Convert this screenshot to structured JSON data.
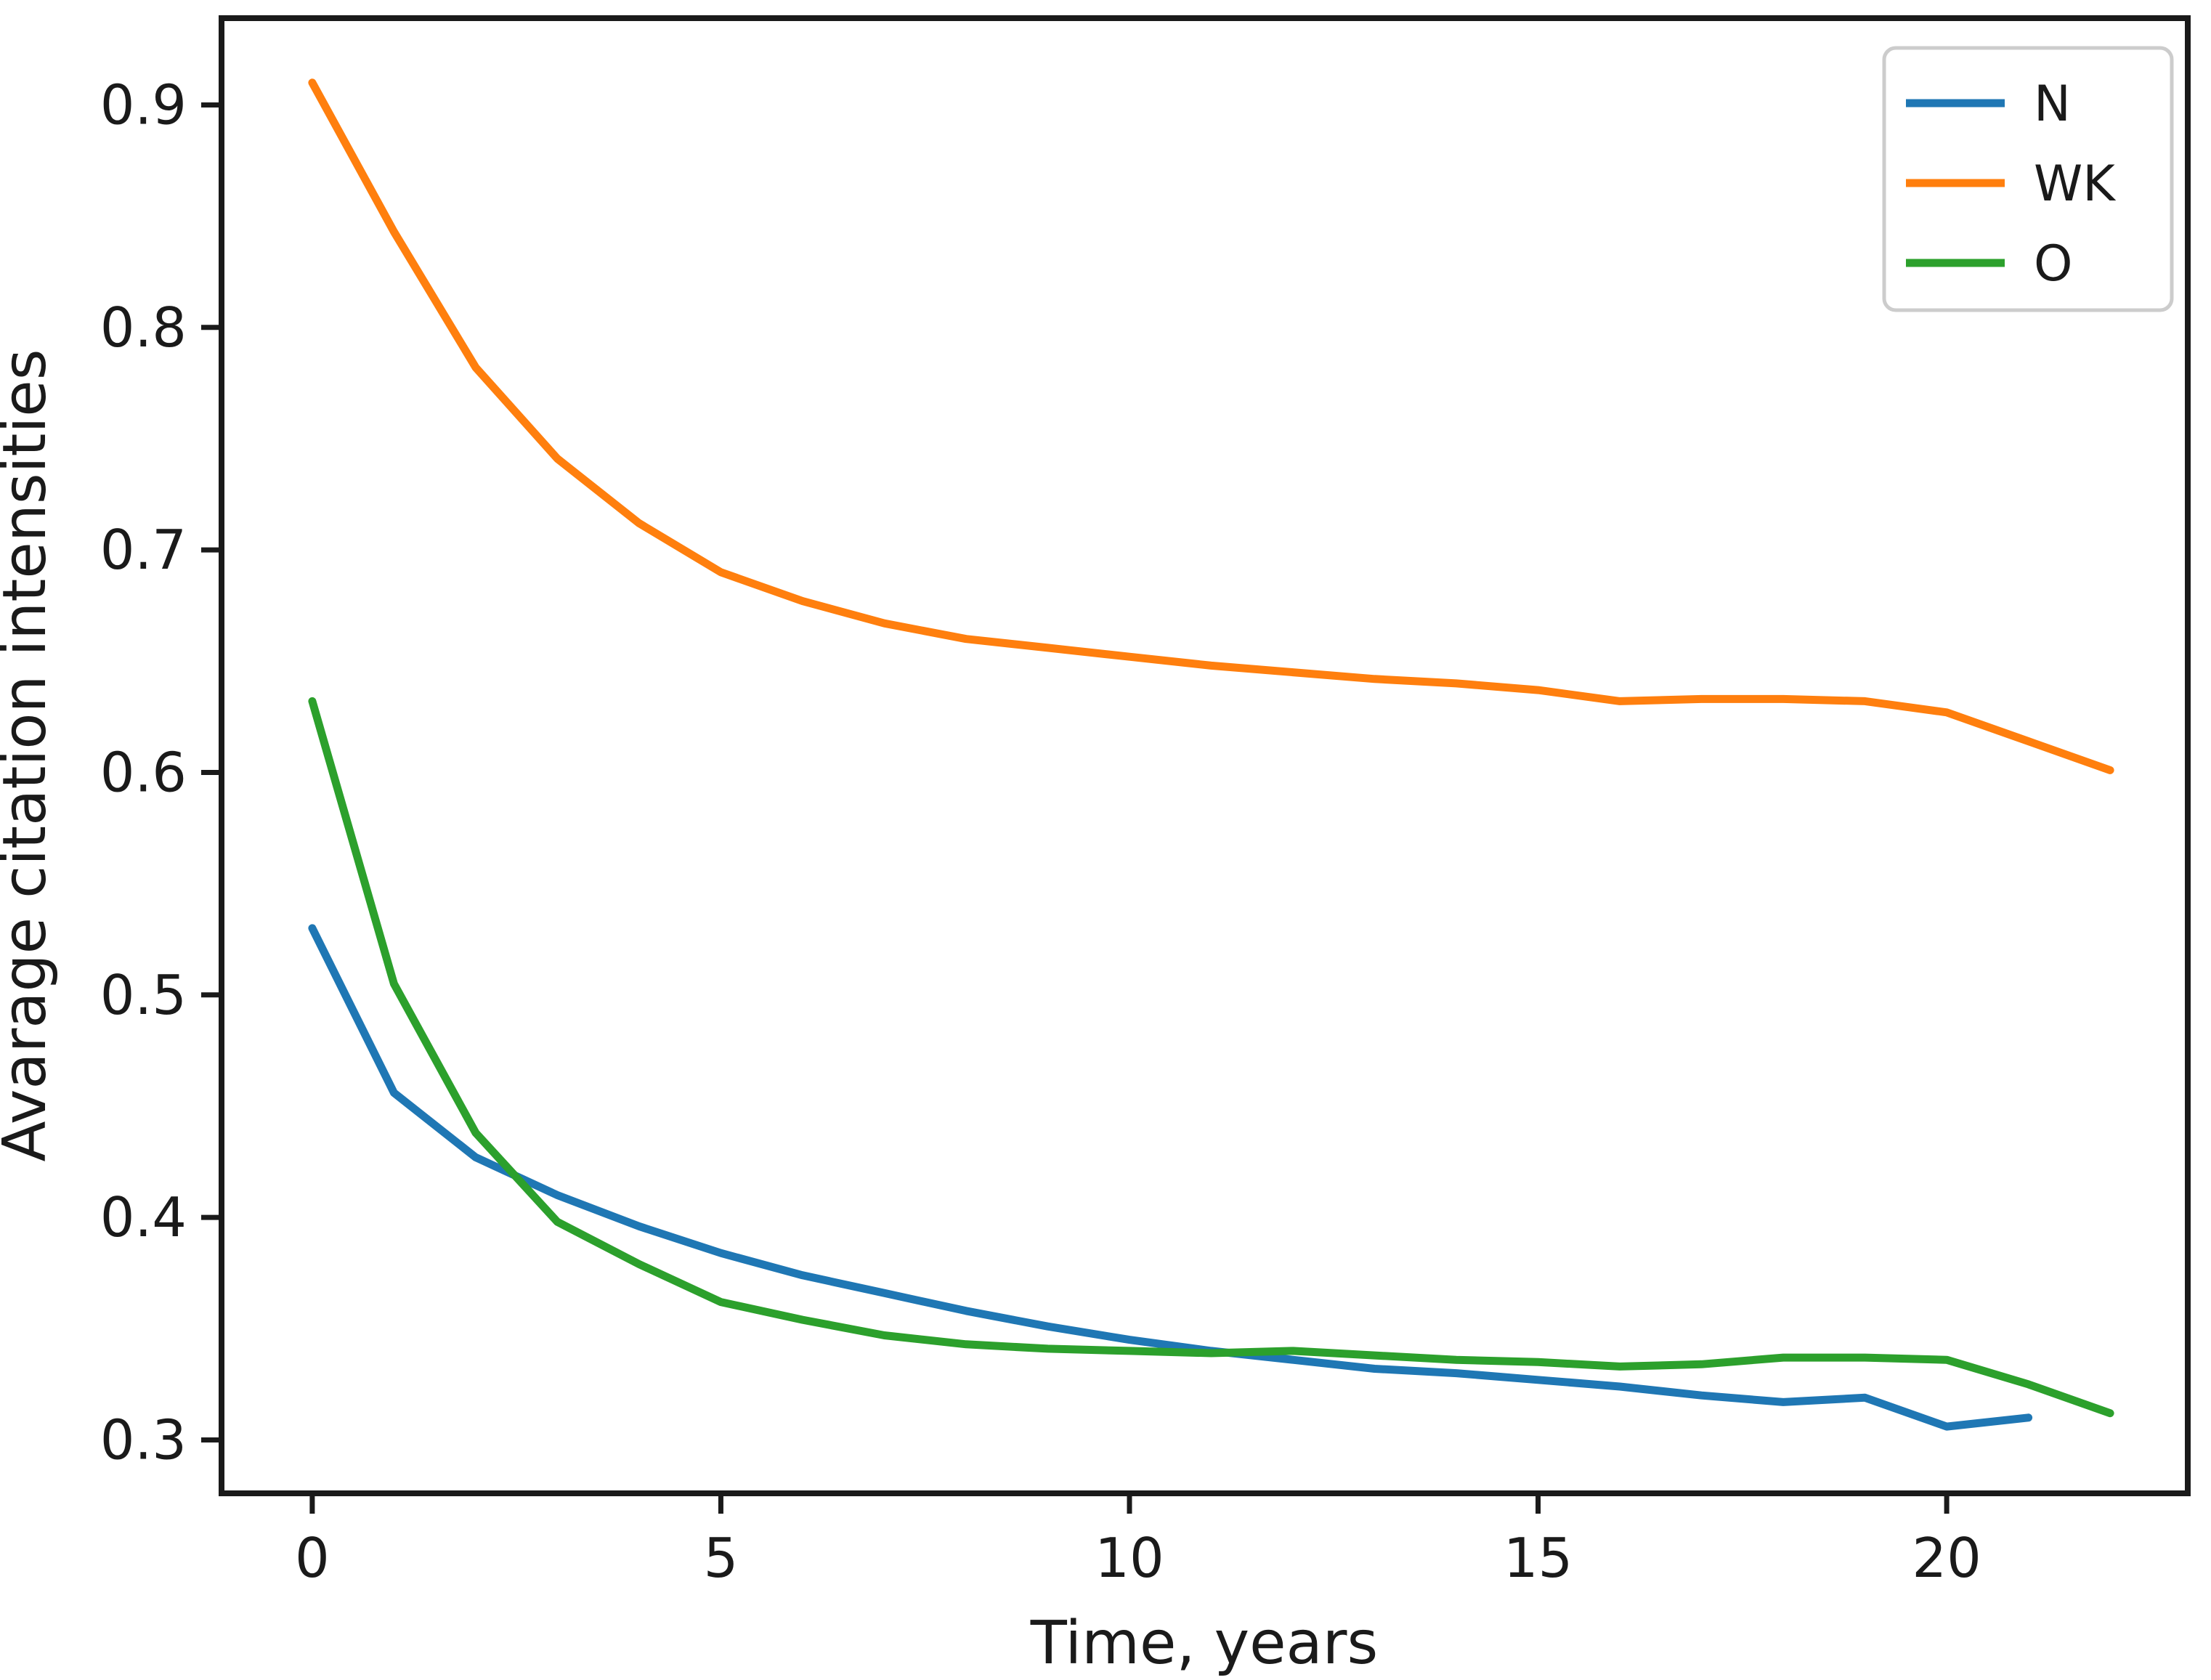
{
  "chart_data": {
    "type": "line",
    "title": "",
    "xlabel": "Time, years",
    "ylabel": "Avarage citation intensities",
    "xlim": [
      -1.11,
      22.95
    ],
    "ylim": [
      0.276,
      0.939
    ],
    "xticks": [
      0,
      5,
      10,
      15,
      20
    ],
    "yticks": [
      0.3,
      0.4,
      0.5,
      0.6,
      0.7,
      0.8,
      0.9
    ],
    "grid": false,
    "legend_position": "upper right",
    "background_color": "#ffffff",
    "axis_color": "#1a1a1a",
    "legend_border_color": "#cccccc",
    "series": [
      {
        "name": "N",
        "color": "#1f77b4",
        "x": [
          0,
          1,
          2,
          3,
          4,
          5,
          6,
          7,
          8,
          9,
          10,
          11,
          12,
          13,
          14,
          15,
          16,
          17,
          18,
          19,
          20,
          21
        ],
        "values": [
          0.53,
          0.456,
          0.427,
          0.41,
          0.396,
          0.384,
          0.374,
          0.366,
          0.358,
          0.351,
          0.345,
          0.34,
          0.336,
          0.332,
          0.33,
          0.327,
          0.324,
          0.32,
          0.317,
          0.319,
          0.306,
          0.31
        ]
      },
      {
        "name": "WK",
        "color": "#ff7f0e",
        "x": [
          0,
          1,
          2,
          3,
          4,
          5,
          6,
          7,
          8,
          9,
          10,
          11,
          12,
          13,
          14,
          15,
          16,
          17,
          18,
          19,
          20,
          21,
          22
        ],
        "values": [
          0.91,
          0.843,
          0.782,
          0.741,
          0.712,
          0.69,
          0.677,
          0.667,
          0.66,
          0.656,
          0.652,
          0.648,
          0.645,
          0.642,
          0.64,
          0.637,
          0.632,
          0.633,
          0.633,
          0.632,
          0.627,
          0.614,
          0.601
        ]
      },
      {
        "name": "O",
        "color": "#2ca02c",
        "x": [
          0,
          1,
          2,
          3,
          4,
          5,
          6,
          7,
          8,
          9,
          10,
          11,
          12,
          13,
          14,
          15,
          16,
          17,
          18,
          19,
          20,
          21,
          22
        ],
        "values": [
          0.632,
          0.505,
          0.438,
          0.398,
          0.379,
          0.362,
          0.354,
          0.347,
          0.343,
          0.341,
          0.34,
          0.339,
          0.34,
          0.338,
          0.336,
          0.335,
          0.333,
          0.334,
          0.337,
          0.337,
          0.336,
          0.325,
          0.312
        ]
      }
    ]
  }
}
